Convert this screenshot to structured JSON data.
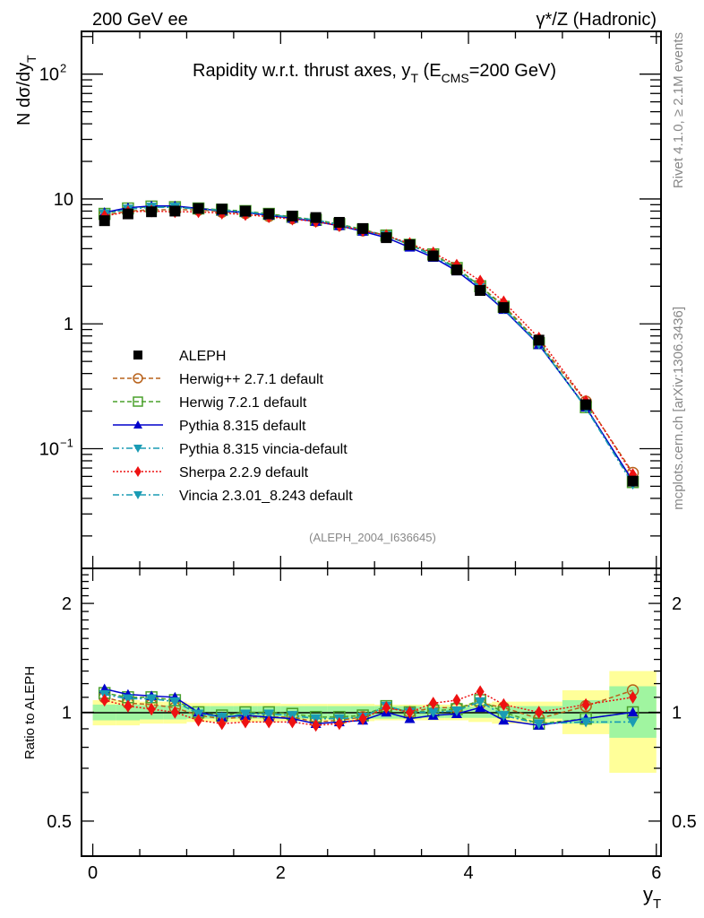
{
  "header": {
    "left_label": "200 GeV ee",
    "right_label": "γ*/Z (Hadronic)"
  },
  "side_labels": {
    "rivet": "Rivet 4.1.0, ≥ 2.1M events",
    "mcplots": "mcplots.cern.ch [arXiv:1306.3436]"
  },
  "chart_data": [
    {
      "type": "line",
      "panel": "main",
      "title": "Rapidity w.r.t. thrust axes, y_T (E_CMS=200 GeV)",
      "title_parts": {
        "main": "Rapidity w.r.t. thrust axes, y",
        "sub1": "T",
        "mid": " (E",
        "sub2": "CMS",
        "tail": "=200 GeV)"
      },
      "ylabel": "N  dσ/dy_T",
      "ylabel_parts": {
        "main": "N  dσ/dy",
        "sub": "T"
      },
      "yscale": "log",
      "ylim": [
        0.011,
        220
      ],
      "xlim": [
        -0.12,
        6.05
      ],
      "yticks": [
        {
          "value": 100,
          "label": "10",
          "sup": "2"
        },
        {
          "value": 10,
          "label": "10",
          "sup": ""
        },
        {
          "value": 1,
          "label": "1",
          "sup": ""
        },
        {
          "value": 0.1,
          "label": "10",
          "sup": "−1"
        }
      ],
      "watermark": "(ALEPH_2004_I636645)",
      "legend_position": "lower-left",
      "x": [
        0.125,
        0.375,
        0.625,
        0.875,
        1.125,
        1.375,
        1.625,
        1.875,
        2.125,
        2.375,
        2.625,
        2.875,
        3.125,
        3.375,
        3.625,
        3.875,
        4.125,
        4.375,
        4.75,
        5.25,
        5.75
      ],
      "x_edges": [
        0,
        0.25,
        0.5,
        0.75,
        1.0,
        1.25,
        1.5,
        1.75,
        2.0,
        2.25,
        2.5,
        2.75,
        3.0,
        3.25,
        3.5,
        3.75,
        4.0,
        4.25,
        4.5,
        5.0,
        5.5,
        6.0
      ],
      "series": [
        {
          "name": "ALEPH",
          "color": "#000000",
          "marker": "square",
          "line": "none",
          "values": [
            6.7,
            7.6,
            7.9,
            8.0,
            8.4,
            8.3,
            8.0,
            7.6,
            7.3,
            7.1,
            6.5,
            5.8,
            4.9,
            4.3,
            3.5,
            2.7,
            1.85,
            1.35,
            0.74,
            0.225,
            0.055
          ]
        },
        {
          "name": "Herwig++ 2.7.1 default",
          "color": "#b8621b",
          "marker": "circle-open",
          "line": "dashed",
          "values": [
            7.4,
            8.0,
            8.2,
            8.2,
            8.2,
            7.9,
            7.7,
            7.3,
            7.0,
            6.7,
            6.2,
            5.6,
            5.1,
            4.3,
            3.6,
            2.8,
            2.0,
            1.4,
            0.71,
            0.238,
            0.064
          ]
        },
        {
          "name": "Herwig 7.2.1 default",
          "color": "#4aa02c",
          "marker": "square-open",
          "line": "dashed",
          "values": [
            7.6,
            8.4,
            8.7,
            8.6,
            8.4,
            8.2,
            8.0,
            7.6,
            7.2,
            6.8,
            6.3,
            5.7,
            5.1,
            4.3,
            3.6,
            2.8,
            2.0,
            1.37,
            0.7,
            0.215,
            0.054
          ]
        },
        {
          "name": "Pythia 8.315 default",
          "color": "#0000cc",
          "marker": "triangle-up",
          "line": "solid",
          "values": [
            7.8,
            8.5,
            8.8,
            8.8,
            8.4,
            8.0,
            7.8,
            7.4,
            7.0,
            6.6,
            6.1,
            5.5,
            4.9,
            4.1,
            3.4,
            2.65,
            1.9,
            1.3,
            0.68,
            0.215,
            0.055
          ]
        },
        {
          "name": "Pythia 8.315 vincia-default",
          "color": "#1a9bb4",
          "marker": "triangle-down",
          "line": "dashdot",
          "values": [
            7.6,
            8.3,
            8.6,
            8.6,
            8.3,
            8.1,
            7.9,
            7.5,
            7.1,
            6.8,
            6.2,
            5.6,
            5.1,
            4.3,
            3.5,
            2.75,
            1.95,
            1.32,
            0.69,
            0.212,
            0.052
          ]
        },
        {
          "name": "Sherpa 2.2.9 default",
          "color": "#ee1111",
          "marker": "diamond",
          "line": "dotted",
          "values": [
            7.3,
            7.9,
            8.0,
            7.9,
            7.9,
            7.7,
            7.5,
            7.2,
            6.9,
            6.6,
            6.1,
            5.6,
            5.1,
            4.4,
            3.7,
            2.95,
            2.2,
            1.5,
            0.77,
            0.24,
            0.062
          ]
        },
        {
          "name": "Vincia 2.3.01_8.243 default",
          "color": "#1a9bb4",
          "marker": "triangle-down",
          "line": "dashdot",
          "values": [
            7.6,
            8.3,
            8.6,
            8.6,
            8.3,
            8.1,
            7.9,
            7.5,
            7.1,
            6.8,
            6.2,
            5.6,
            5.1,
            4.3,
            3.5,
            2.75,
            1.95,
            1.32,
            0.69,
            0.212,
            0.052
          ]
        }
      ]
    },
    {
      "type": "line",
      "panel": "ratio",
      "ylabel": "Ratio to ALEPH",
      "xlabel": "y_T",
      "xlabel_parts": {
        "main": "y",
        "sub": "T"
      },
      "yscale": "log",
      "ylim": [
        0.4,
        2.5
      ],
      "xlim": [
        -0.12,
        6.05
      ],
      "yticks": [
        {
          "value": 2,
          "label": "2"
        },
        {
          "value": 1,
          "label": "1"
        },
        {
          "value": 0.5,
          "label": "0.5"
        }
      ],
      "xticks": [
        {
          "value": 0,
          "label": "0"
        },
        {
          "value": 2,
          "label": "2"
        },
        {
          "value": 4,
          "label": "4"
        },
        {
          "value": 6,
          "label": "6"
        }
      ],
      "bands": {
        "stat_color": "#a0f5a0",
        "total_color": "#ffff99",
        "stat": [
          [
            0.95,
            1.05
          ],
          [
            0.95,
            1.05
          ],
          [
            0.955,
            1.045
          ],
          [
            0.955,
            1.045
          ],
          [
            0.96,
            1.04
          ],
          [
            0.96,
            1.04
          ],
          [
            0.96,
            1.04
          ],
          [
            0.96,
            1.04
          ],
          [
            0.96,
            1.04
          ],
          [
            0.96,
            1.04
          ],
          [
            0.96,
            1.04
          ],
          [
            0.96,
            1.04
          ],
          [
            0.96,
            1.04
          ],
          [
            0.96,
            1.04
          ],
          [
            0.965,
            1.035
          ],
          [
            0.965,
            1.035
          ],
          [
            0.965,
            1.035
          ],
          [
            0.965,
            1.035
          ],
          [
            0.96,
            1.04
          ],
          [
            0.93,
            1.08
          ],
          [
            0.85,
            1.18
          ]
        ],
        "total": [
          [
            0.92,
            1.08
          ],
          [
            0.92,
            1.08
          ],
          [
            0.93,
            1.07
          ],
          [
            0.93,
            1.07
          ],
          [
            0.94,
            1.06
          ],
          [
            0.94,
            1.06
          ],
          [
            0.94,
            1.06
          ],
          [
            0.94,
            1.06
          ],
          [
            0.945,
            1.055
          ],
          [
            0.945,
            1.055
          ],
          [
            0.945,
            1.055
          ],
          [
            0.945,
            1.055
          ],
          [
            0.95,
            1.05
          ],
          [
            0.95,
            1.05
          ],
          [
            0.95,
            1.05
          ],
          [
            0.95,
            1.05
          ],
          [
            0.94,
            1.06
          ],
          [
            0.93,
            1.07
          ],
          [
            0.93,
            1.07
          ],
          [
            0.87,
            1.15
          ],
          [
            0.68,
            1.3
          ]
        ]
      },
      "series": [
        {
          "name": "Herwig++ 2.7.1 default",
          "values": [
            1.1,
            1.06,
            1.05,
            1.03,
            0.98,
            0.96,
            0.97,
            0.97,
            0.97,
            0.94,
            0.95,
            0.97,
            1.03,
            1.0,
            1.03,
            1.03,
            1.06,
            1.03,
            0.96,
            1.04,
            1.15
          ]
        },
        {
          "name": "Herwig 7.2.1 default",
          "values": [
            1.13,
            1.1,
            1.1,
            1.08,
            1.0,
            0.98,
            1.0,
            1.0,
            0.99,
            0.97,
            0.97,
            0.98,
            1.04,
            1.0,
            1.01,
            1.02,
            1.08,
            1.0,
            0.93,
            0.96,
            1.0
          ]
        },
        {
          "name": "Pythia 8.315 default",
          "values": [
            1.16,
            1.12,
            1.11,
            1.1,
            1.0,
            0.97,
            0.98,
            0.97,
            0.96,
            0.93,
            0.94,
            0.95,
            1.0,
            0.96,
            0.98,
            0.99,
            1.03,
            0.95,
            0.92,
            0.96,
            1.0
          ]
        },
        {
          "name": "Pythia 8.315 vincia-default",
          "values": [
            1.12,
            1.09,
            1.09,
            1.07,
            0.99,
            0.97,
            0.99,
            0.99,
            0.98,
            0.96,
            0.96,
            0.97,
            1.04,
            1.0,
            1.0,
            1.01,
            1.07,
            0.98,
            0.93,
            0.94,
            0.94
          ]
        },
        {
          "name": "Sherpa 2.2.9 default",
          "values": [
            1.08,
            1.04,
            1.02,
            1.0,
            0.95,
            0.93,
            0.94,
            0.94,
            0.94,
            0.92,
            0.93,
            0.96,
            1.03,
            1.0,
            1.06,
            1.08,
            1.14,
            1.05,
            1.0,
            1.05,
            1.1
          ]
        },
        {
          "name": "Vincia 2.3.01_8.243 default",
          "values": [
            1.12,
            1.09,
            1.09,
            1.07,
            0.99,
            0.97,
            0.99,
            0.99,
            0.98,
            0.96,
            0.96,
            0.97,
            1.04,
            1.0,
            1.0,
            1.01,
            1.07,
            0.98,
            0.93,
            0.94,
            0.94
          ]
        }
      ]
    }
  ]
}
